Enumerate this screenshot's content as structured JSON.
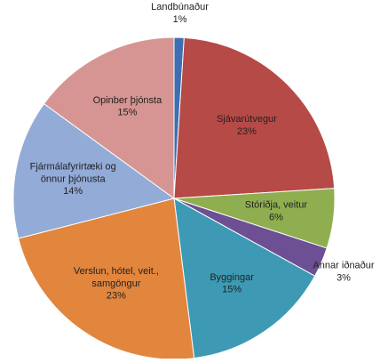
{
  "chart_data": {
    "type": "pie",
    "categories": [
      "Landbúnaður",
      "Sjávarútvegur",
      "Stóriðja, veitur",
      "Annar iðnaður",
      "Byggingar",
      "Verslun, hótel, veit., samgöngur",
      "Fjármálafyrirtæki og önnur þjónusta",
      "Opinber þjónsta"
    ],
    "values": [
      1,
      23,
      6,
      3,
      15,
      23,
      14,
      15
    ],
    "value_labels": [
      "1%",
      "23%",
      "6%",
      "3%",
      "15%",
      "23%",
      "14%",
      "15%"
    ],
    "colors": [
      "#3f6fb2",
      "#b64a47",
      "#8fae4f",
      "#6d4f93",
      "#3e9ab4",
      "#e2853d",
      "#93abd7",
      "#d69592"
    ]
  }
}
